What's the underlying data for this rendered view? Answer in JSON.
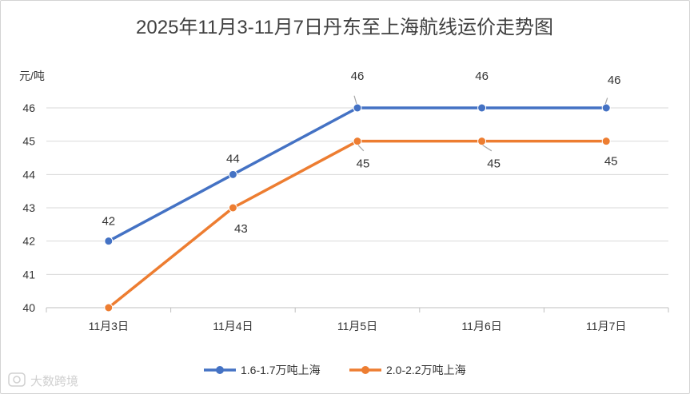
{
  "chart_data": {
    "type": "line",
    "title": "2025年11月3-11月7日丹东至上海航线运价走势图",
    "ylabel": "元/吨",
    "xlabel": "",
    "categories": [
      "11月3日",
      "11月4日",
      "11月5日",
      "11月6日",
      "11月7日"
    ],
    "ylim": [
      40,
      46
    ],
    "yticks": [
      40,
      41,
      42,
      43,
      44,
      45,
      46
    ],
    "grid": true,
    "legend_position": "bottom",
    "series": [
      {
        "name": "1.6-1.7万吨上海",
        "values": [
          42,
          44,
          46,
          46,
          46
        ],
        "color": "#4472C4"
      },
      {
        "name": "2.0-2.2万吨上海",
        "values": [
          40,
          43,
          45,
          45,
          45
        ],
        "color": "#ED7D31"
      }
    ],
    "data_labels": [
      [
        "42",
        "44",
        "46",
        "46",
        "46"
      ],
      [
        "",
        "43",
        "45",
        "45",
        "45"
      ]
    ]
  },
  "watermark": "大数跨境"
}
